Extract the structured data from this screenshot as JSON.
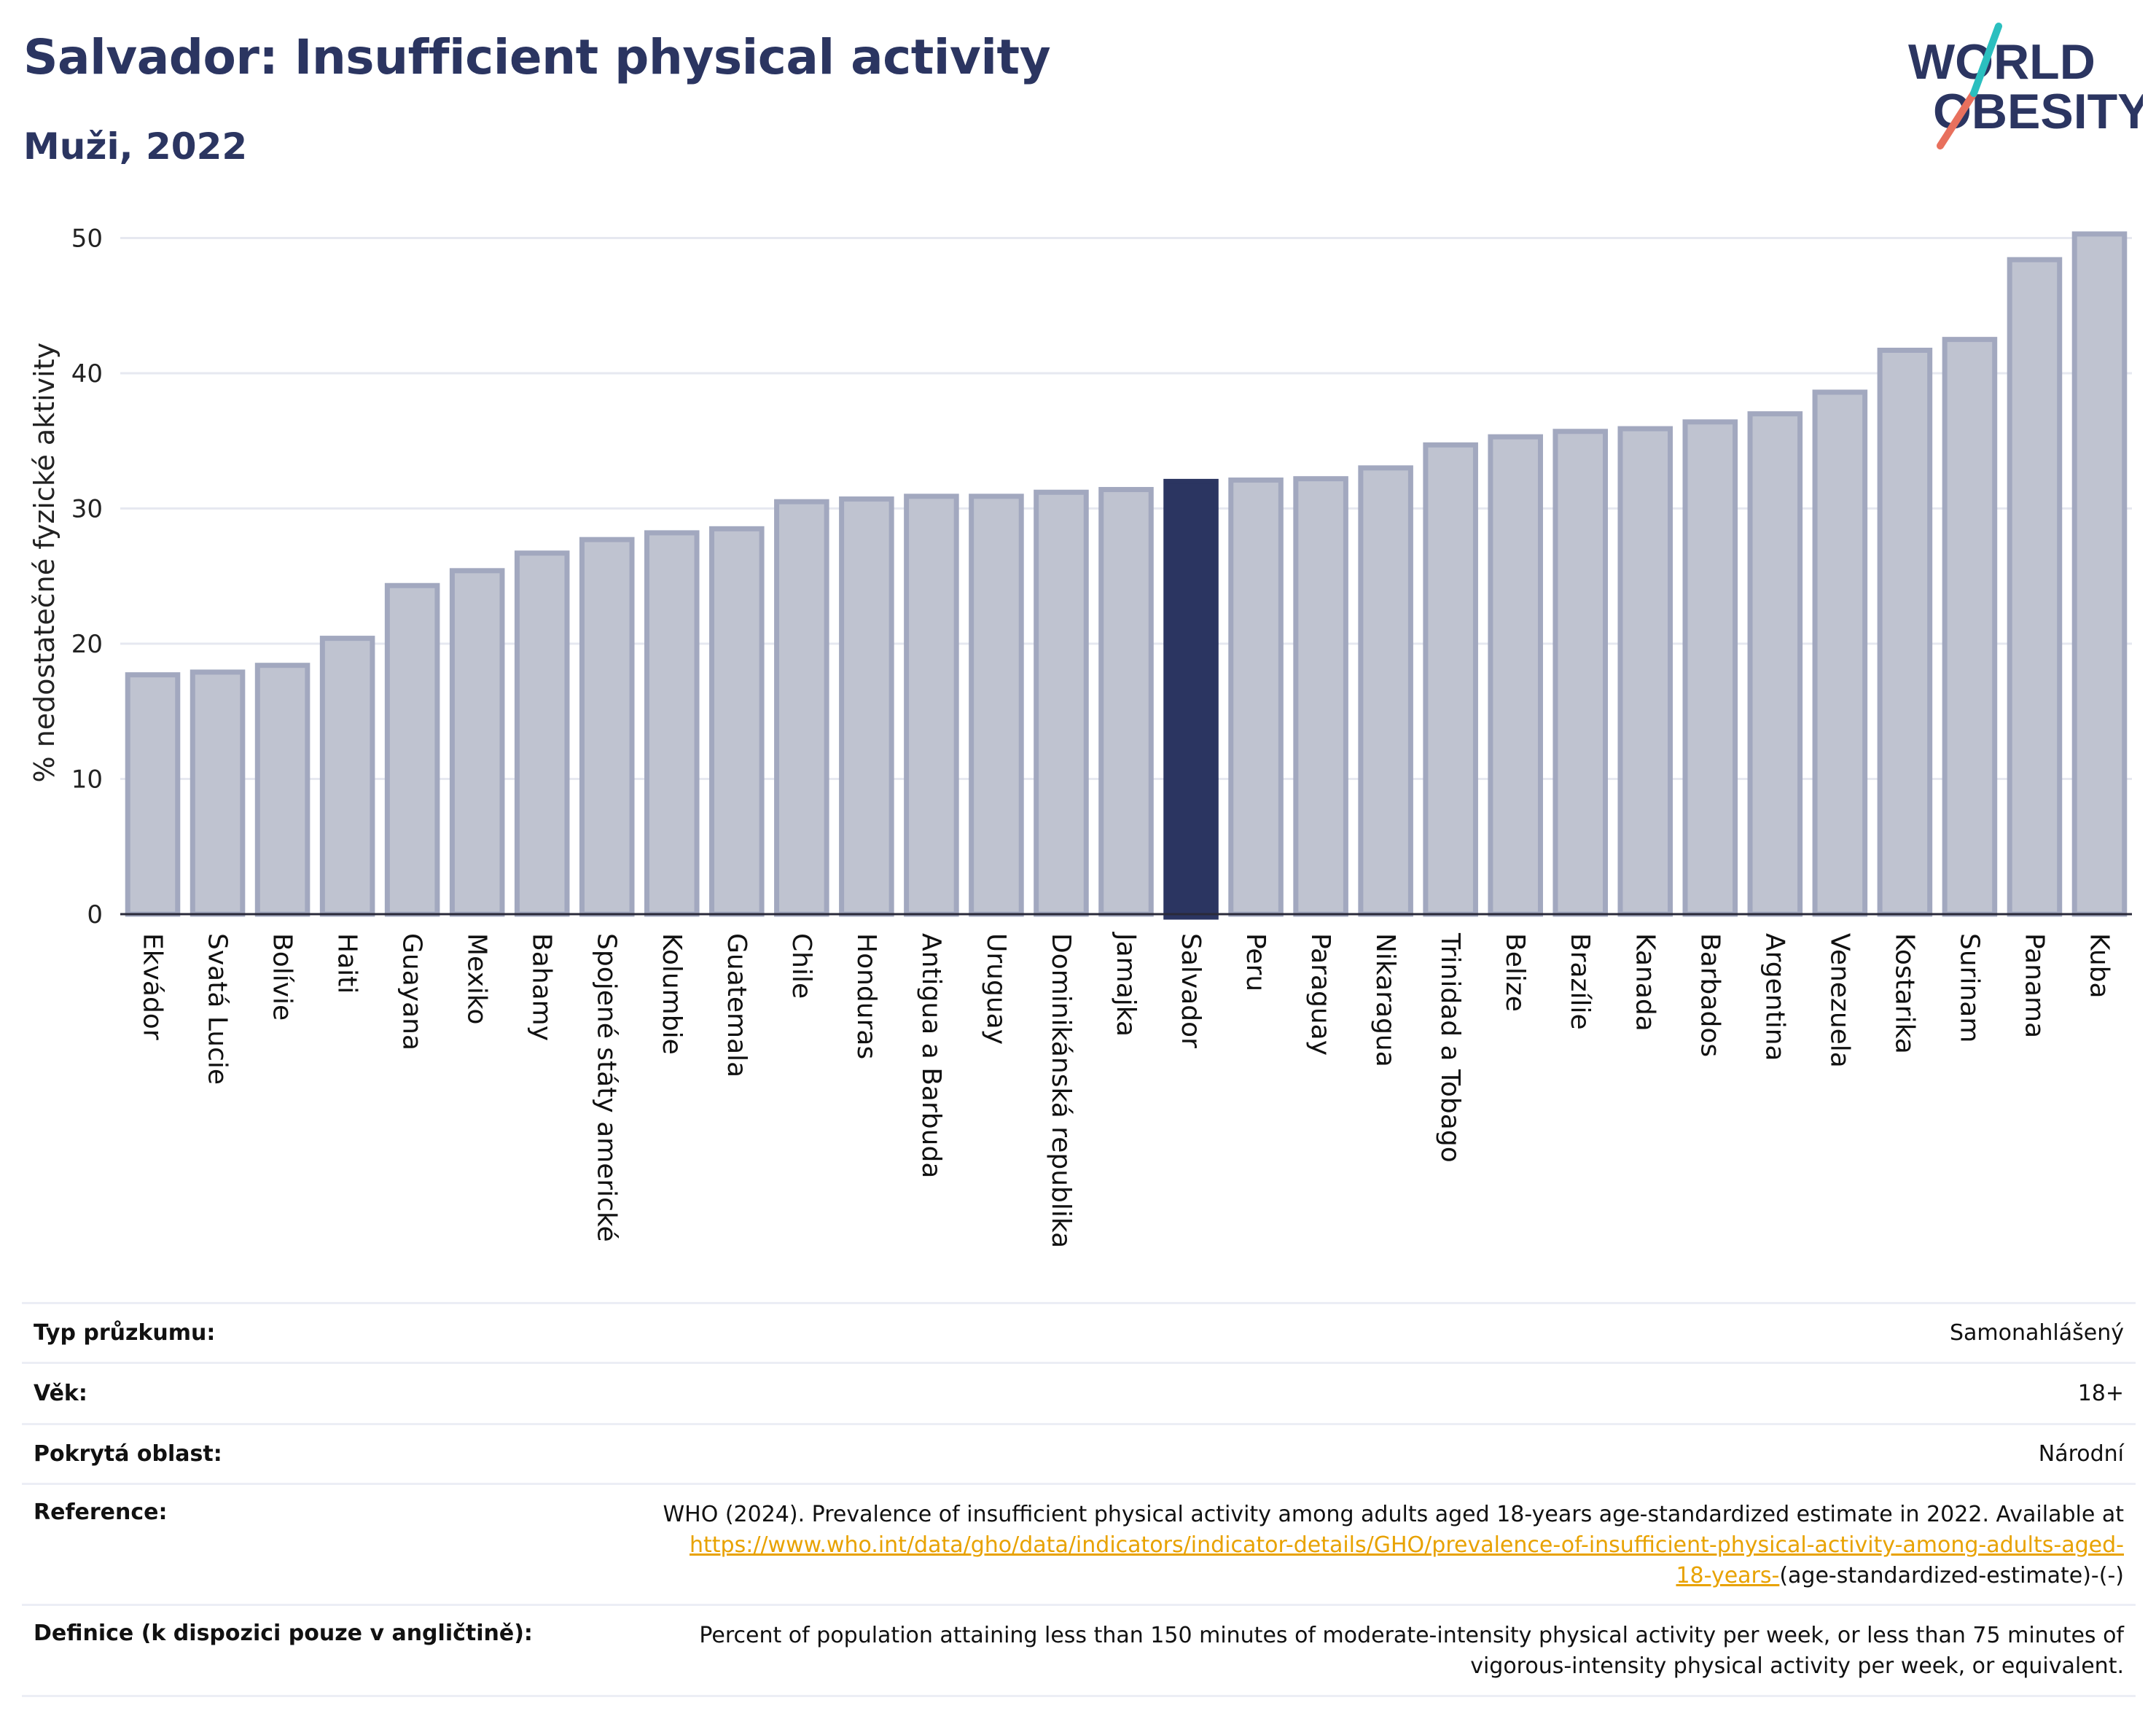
{
  "header": {
    "title": "Salvador: Insufficient physical activity",
    "subtitle": "Muži, 2022",
    "logo_line1": "WORLD",
    "logo_line2": "OBESITY"
  },
  "colors": {
    "bar": "#bfc3d0",
    "bar_border": "#a2a8bf",
    "highlight": "#2b3561",
    "text": "#2b3561",
    "link": "#e8a200"
  },
  "chart_data": {
    "type": "bar",
    "title": "Salvador: Insufficient physical activity",
    "subtitle": "Muži, 2022",
    "xlabel": "",
    "ylabel": "% nedostatečné fyzické aktivity",
    "ylim": [
      0,
      52
    ],
    "yticks": [
      0,
      10,
      20,
      30,
      40,
      50
    ],
    "grid": true,
    "highlight": "Salvador",
    "categories": [
      "Ekvádor",
      "Svatá Lucie",
      "Bolívie",
      "Haiti",
      "Guayana",
      "Mexiko",
      "Bahamy",
      "Spojené státy americké",
      "Kolumbie",
      "Guatemala",
      "Chile",
      "Honduras",
      "Antigua a Barbuda",
      "Uruguay",
      "Dominikánská republika",
      "Jamajka",
      "Salvador",
      "Peru",
      "Paraguay",
      "Nikaragua",
      "Trinidad a Tobago",
      "Belize",
      "Brazílie",
      "Kanada",
      "Barbados",
      "Argentina",
      "Venezuela",
      "Kostarika",
      "Surinam",
      "Panama",
      "Kuba"
    ],
    "values": [
      17.7,
      17.9,
      18.4,
      20.4,
      24.3,
      25.4,
      26.7,
      27.7,
      28.2,
      28.5,
      30.5,
      30.7,
      30.9,
      30.9,
      31.2,
      31.4,
      32.0,
      32.1,
      32.2,
      33.0,
      34.7,
      35.3,
      35.7,
      35.9,
      36.4,
      37.0,
      38.6,
      41.7,
      42.5,
      48.4,
      50.3
    ]
  },
  "info": {
    "survey_label": "Typ průzkumu:",
    "survey_value": "Samonahlášený",
    "age_label": "Věk:",
    "age_value": "18+",
    "coverage_label": "Pokrytá oblast:",
    "coverage_value": "Národní",
    "reference_label": "Reference:",
    "reference_text": "WHO (2024). Prevalence of insufficient physical activity among adults aged 18-years age-standardized estimate in 2022. Available at",
    "reference_link_line1": "https://www.who.int/data/gho/data/indicators/indicator-details/GHO/prevalence-of-insufficient-physical-activity-among-adults-aged-",
    "reference_link_line2": "18-years-",
    "reference_suffix": "(age-standardized-estimate)-(-)",
    "definition_label": "Definice (k dispozici pouze v angličtině):",
    "definition_line1": "Percent of population attaining less than 150 minutes of moderate-intensity physical activity per week, or less than 75 minutes of",
    "definition_line2": "vigorous-intensity physical activity per week, or equivalent."
  }
}
